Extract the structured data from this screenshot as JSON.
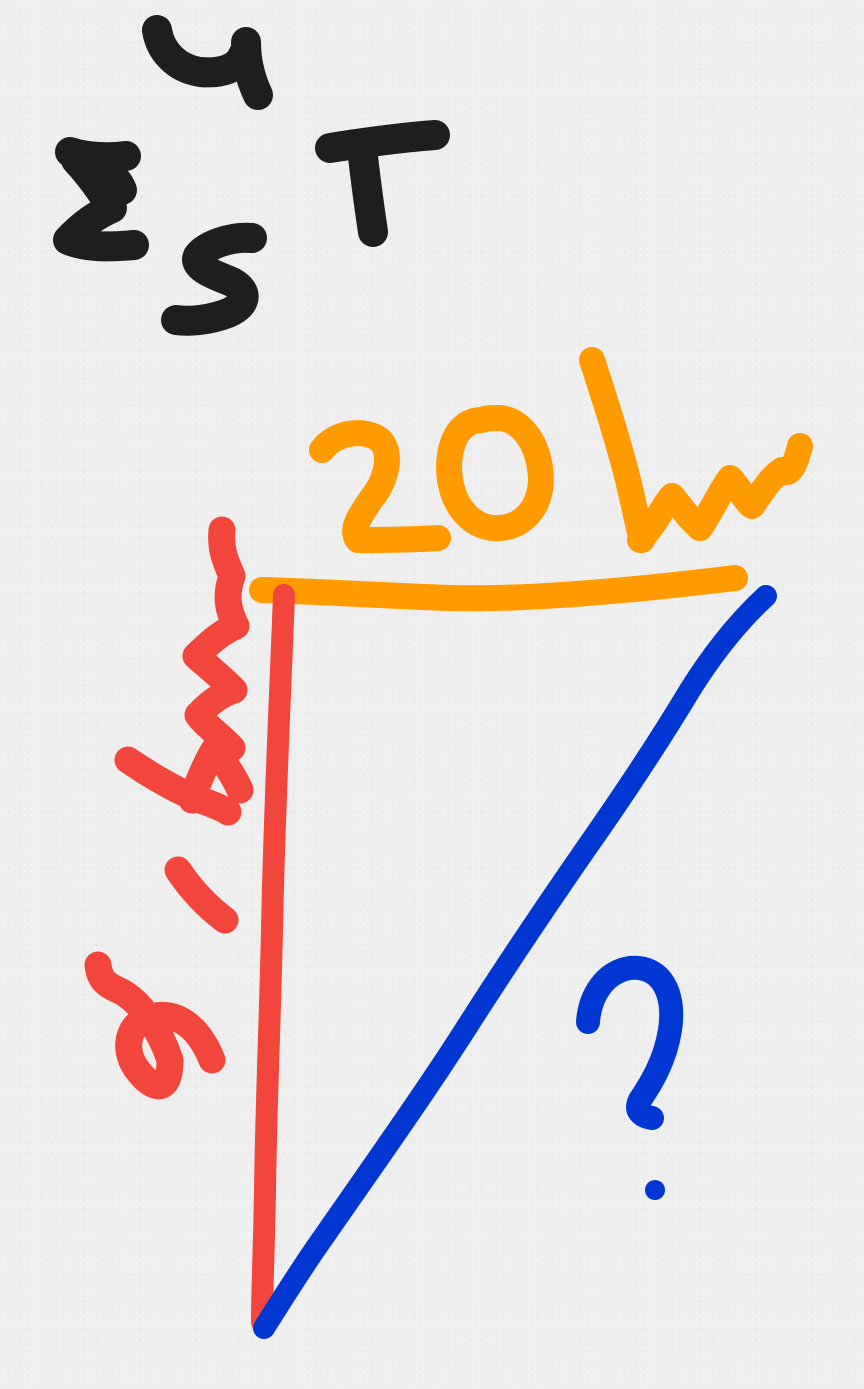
{
  "labels": {
    "compass_north": "N",
    "compass_west": "W",
    "compass_south": "S",
    "compass_east": "E",
    "top_side": "20km",
    "left_side": "21km",
    "hypotenuse": "?"
  },
  "colors": {
    "background": "#eeeeee",
    "compass": "#1e1e1e",
    "top_side": "#ff9a00",
    "left_side": "#f2463c",
    "hypotenuse": "#0037d2"
  }
}
